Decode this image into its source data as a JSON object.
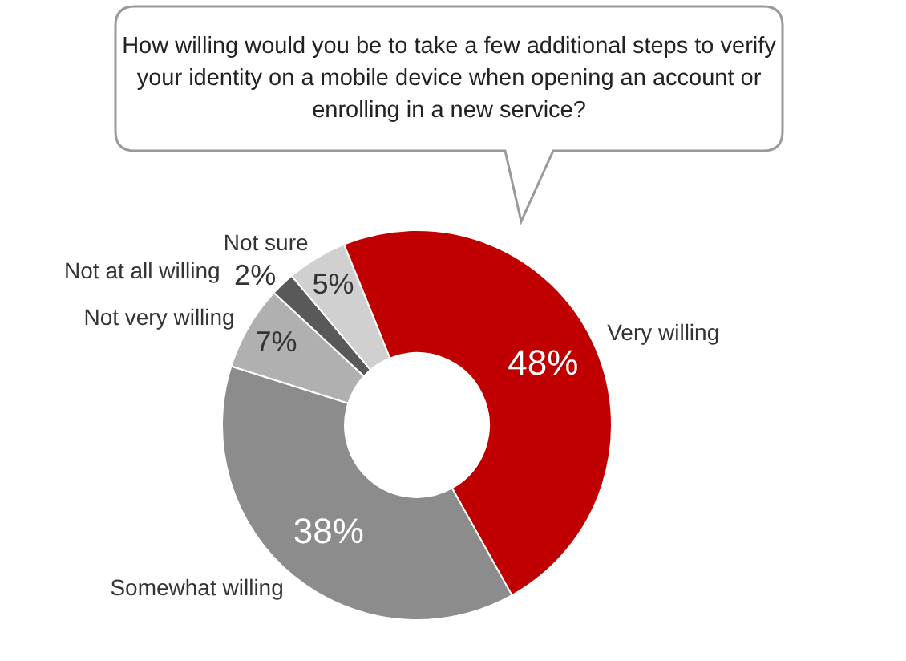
{
  "chart_data": {
    "type": "donut",
    "title": "How willing would you be to take a few additional steps to verify your identity on a mobile device when opening an account or enrolling in a new service?",
    "categories": [
      "Very willing",
      "Somewhat willing",
      "Not very willing",
      "Not at all willing",
      "Not sure"
    ],
    "values": [
      48,
      38,
      7,
      2,
      5
    ],
    "value_labels": [
      "48%",
      "38%",
      "7%",
      "2%",
      "5%"
    ],
    "colors": [
      "#c00000",
      "#8c8c8c",
      "#b0b0b0",
      "#595959",
      "#d0d0d0"
    ],
    "legend": false
  }
}
